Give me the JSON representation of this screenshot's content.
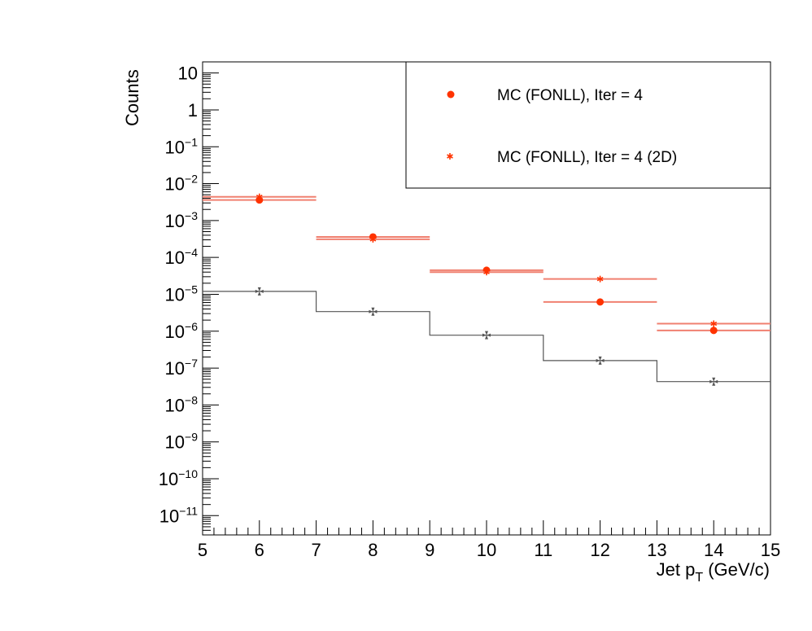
{
  "chart_data": {
    "type": "scatter",
    "title": "",
    "xlabel_main": "Jet p",
    "xlabel_sub": "T",
    "xlabel_unit": " (GeV/c)",
    "ylabel": "Counts",
    "xlim": [
      5,
      15
    ],
    "ylim": [
      3e-12,
      20
    ],
    "log_y": true,
    "grid": false,
    "legend_position": "top-right",
    "x_ticks": [
      "5",
      "6",
      "7",
      "8",
      "9",
      "10",
      "11",
      "12",
      "13",
      "14",
      "15"
    ],
    "y_ticks": [
      {
        "base": "10",
        "exp": "",
        "value": 10
      },
      {
        "base": "1",
        "exp": "",
        "value": 1
      },
      {
        "base": "10",
        "exp": "−1",
        "value": 0.1
      },
      {
        "base": "10",
        "exp": "−2",
        "value": 0.01
      },
      {
        "base": "10",
        "exp": "−3",
        "value": 0.001
      },
      {
        "base": "10",
        "exp": "−4",
        "value": 0.0001
      },
      {
        "base": "10",
        "exp": "−5",
        "value": 1e-05
      },
      {
        "base": "10",
        "exp": "−6",
        "value": 1e-06
      },
      {
        "base": "10",
        "exp": "−7",
        "value": 1e-07
      },
      {
        "base": "10",
        "exp": "−8",
        "value": 1e-08
      },
      {
        "base": "10",
        "exp": "−9",
        "value": 1e-09
      },
      {
        "base": "10",
        "exp": "−10",
        "value": 1e-10
      },
      {
        "base": "10",
        "exp": "−11",
        "value": 1e-11
      }
    ],
    "series": [
      {
        "name": "MC (FONLL), Iter = 4",
        "marker": "circle",
        "color": "#ff3300",
        "line_color": "#f08070",
        "x": [
          6,
          8,
          10,
          12,
          14
        ],
        "xerr": [
          1,
          1,
          1,
          1,
          1
        ],
        "y": [
          0.0036,
          0.00036,
          4.5e-05,
          6.2e-06,
          1.05e-06
        ]
      },
      {
        "name": "MC (FONLL), Iter = 4 (2D)",
        "marker": "star",
        "color": "#ff3300",
        "line_color": "#f08070",
        "x": [
          6,
          8,
          10,
          12,
          14
        ],
        "xerr": [
          1,
          1,
          1,
          1,
          1
        ],
        "y": [
          0.0044,
          0.00031,
          4e-05,
          2.6e-05,
          1.6e-06
        ]
      },
      {
        "name": "",
        "marker": "cross-histogram",
        "color": "#555555",
        "bin_edges": [
          5,
          7,
          9,
          11,
          13,
          15
        ],
        "x": [
          6,
          8,
          10,
          12,
          14
        ],
        "y": [
          1.2e-05,
          3.4e-06,
          7.8e-07,
          1.6e-07,
          4.3e-08
        ]
      }
    ]
  }
}
